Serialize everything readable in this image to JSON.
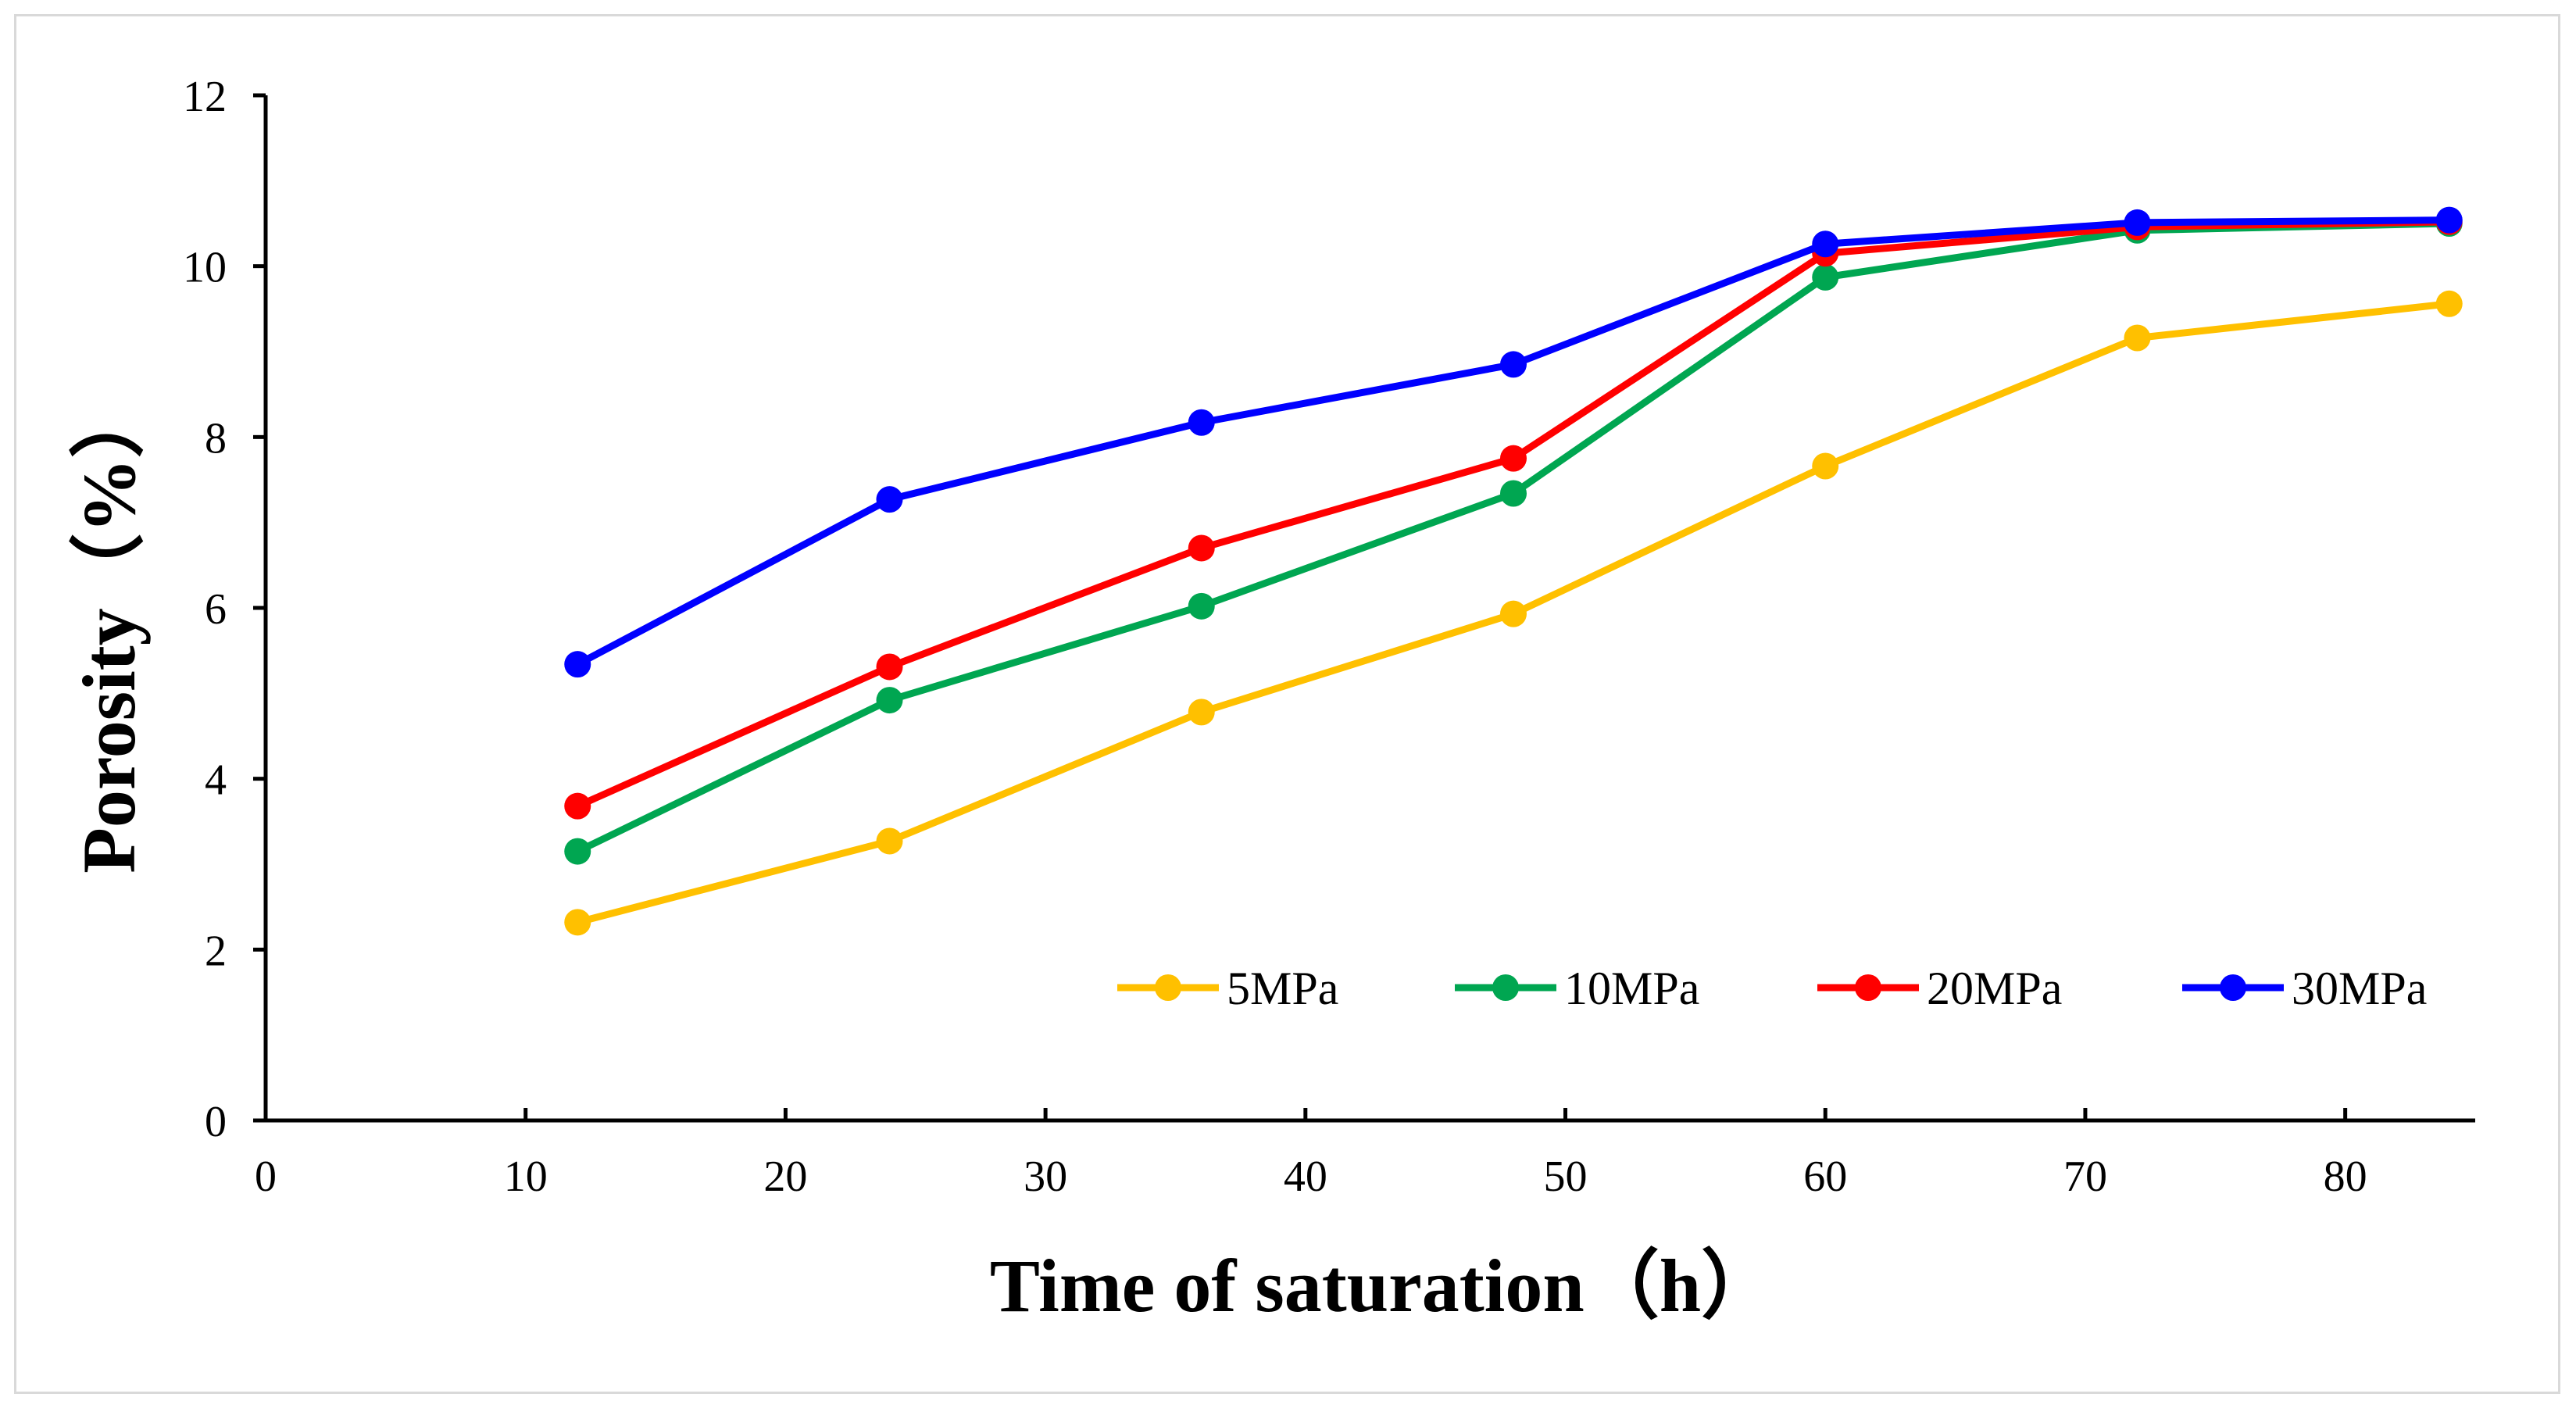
{
  "chart_data": {
    "type": "line",
    "title": "",
    "xlabel": "Time of saturation（h）",
    "ylabel": "Porosity（%）",
    "xlim": [
      0,
      85
    ],
    "ylim": [
      0,
      12
    ],
    "xticks": [
      0,
      10,
      20,
      30,
      40,
      50,
      60,
      70,
      80
    ],
    "yticks": [
      0,
      2,
      4,
      6,
      8,
      10,
      12
    ],
    "grid": false,
    "legend_position": "bottom-right",
    "x": [
      12,
      24,
      36,
      48,
      60,
      72,
      84
    ],
    "series": [
      {
        "name": "5MPa",
        "color": "#FFC000",
        "values": [
          2.32,
          3.27,
          4.78,
          5.93,
          7.66,
          9.16,
          9.56
        ]
      },
      {
        "name": "10MPa",
        "color": "#00A651",
        "values": [
          3.15,
          4.92,
          6.02,
          7.34,
          9.87,
          10.42,
          10.5
        ]
      },
      {
        "name": "20MPa",
        "color": "#FF0000",
        "values": [
          3.68,
          5.31,
          6.7,
          7.75,
          10.15,
          10.46,
          10.52
        ]
      },
      {
        "name": "30MPa",
        "color": "#0000FF",
        "values": [
          5.34,
          7.27,
          8.17,
          8.85,
          10.26,
          10.51,
          10.54
        ]
      }
    ]
  }
}
